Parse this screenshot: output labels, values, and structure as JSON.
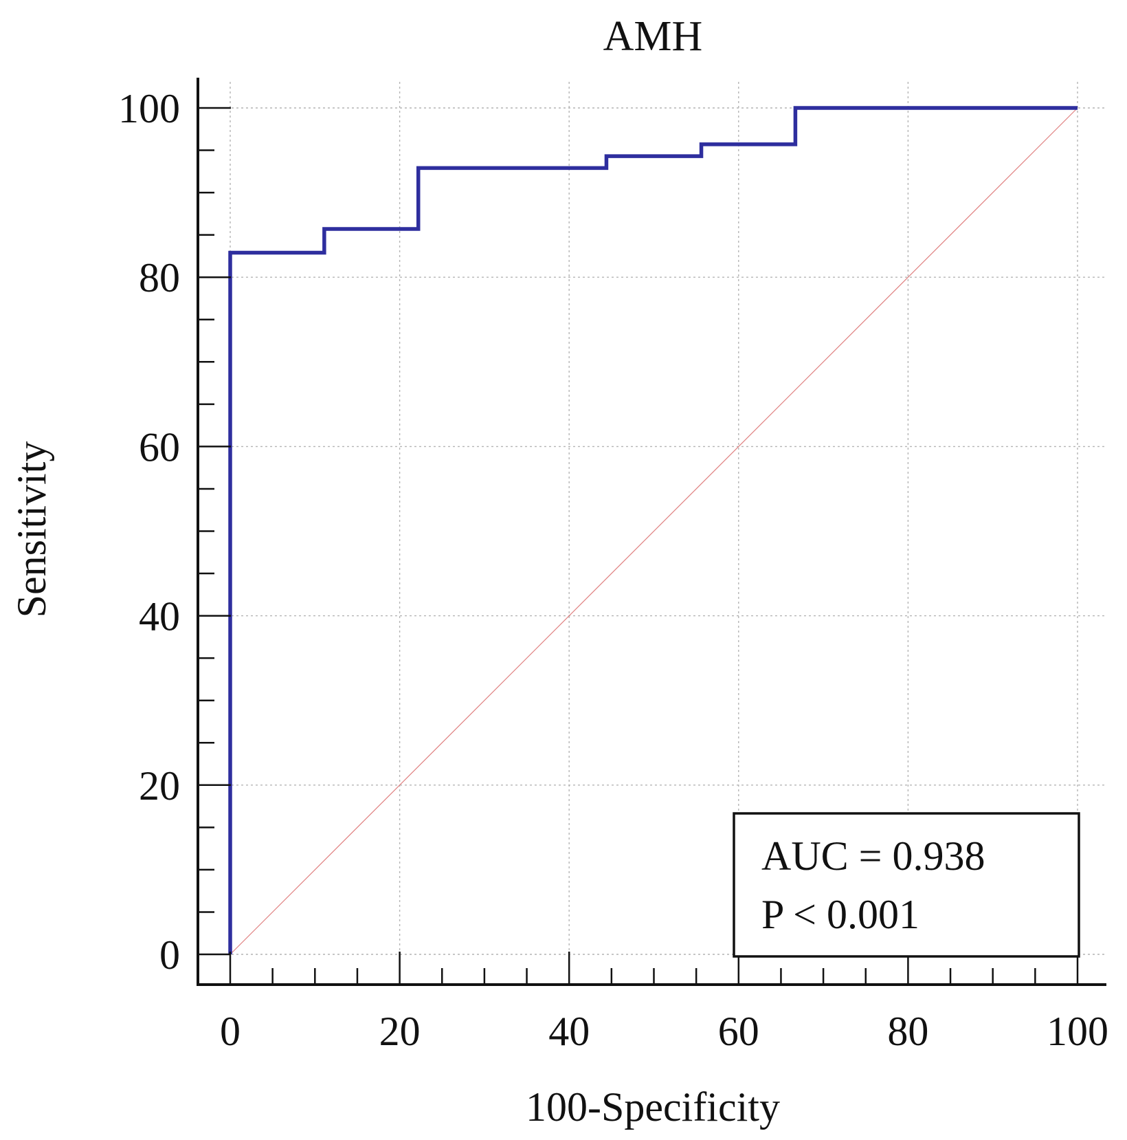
{
  "chart_data": {
    "type": "line",
    "title": "AMH",
    "xlabel": "100-Specificity",
    "ylabel": "Sensitivity",
    "xlim": [
      0,
      100
    ],
    "ylim": [
      0,
      100
    ],
    "x_ticks": [
      "0",
      "20",
      "40",
      "60",
      "80",
      "100"
    ],
    "y_ticks": [
      "0",
      "20",
      "40",
      "60",
      "80",
      "100"
    ],
    "x_minor_step": 5,
    "y_minor_step": 5,
    "grid": true,
    "series": [
      {
        "name": "",
        "color": "#2e2e9e",
        "step": true,
        "x": [
          0,
          0,
          11.1,
          11.1,
          22.2,
          22.2,
          44.4,
          44.4,
          55.6,
          55.6,
          66.7,
          66.7,
          100
        ],
        "y": [
          0,
          82.9,
          82.9,
          85.7,
          85.7,
          92.9,
          92.9,
          94.3,
          94.3,
          95.7,
          95.7,
          100,
          100
        ]
      }
    ],
    "reference_line": {
      "x": [
        0,
        100
      ],
      "y": [
        0,
        100
      ],
      "color": "#e08080"
    },
    "annotation": {
      "lines": [
        "AUC = 0.938",
        "P < 0.001"
      ],
      "placement": "bottom-right"
    }
  }
}
